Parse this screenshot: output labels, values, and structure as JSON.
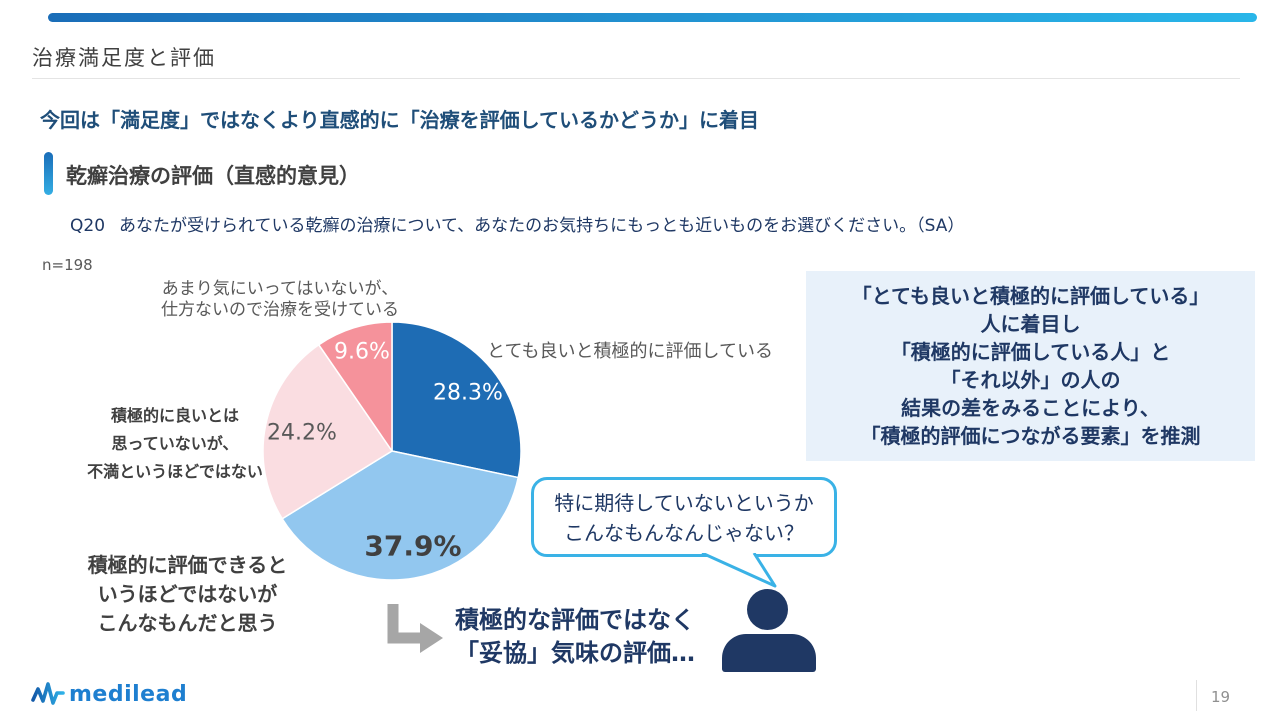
{
  "header": {
    "slide_title": "治療満足度と評価"
  },
  "headline": "今回は「満足度」ではなくより直感的に「治療を評価しているかどうか」に着目",
  "section": {
    "title": "乾癬治療の評価（直感的意見）",
    "question_no": "Q20",
    "question_text": "あなたが受けられている乾癬の治療について、あなたのお気持ちにもっとも近いものをお選びください。（SA）",
    "sample_size": "n=198"
  },
  "chart_data": {
    "type": "pie",
    "n": 198,
    "start_angle_deg": 0,
    "direction": "clockwise",
    "segments": [
      {
        "label": "とても良いと積極的に評価している",
        "value": 28.3,
        "value_label": "28.3%",
        "color": "#1e6cb4"
      },
      {
        "label": "積極的に評価できるというほどではないがこんなもんだと思う",
        "value": 37.9,
        "value_label": "37.9%",
        "color": "#92c7ef"
      },
      {
        "label": "積極的に良いとは思っていないが、不満というほどではない",
        "value": 24.2,
        "value_label": "24.2%",
        "color": "#fadde1"
      },
      {
        "label": "あまり気にいってはいないが、仕方ないので治療を受けている",
        "value": 9.6,
        "value_label": "9.6%",
        "color": "#f5929b"
      }
    ]
  },
  "pie_labels": {
    "top": [
      "あまり気にいってはいないが、",
      "仕方ないので治療を受けている"
    ],
    "right": "とても良いと積極的に評価している",
    "left": [
      "積極的に良いとは",
      "思っていないが、",
      "不満というほどではない"
    ],
    "bottom_left": [
      "積極的に評価できると",
      "いうほどではないが",
      "こんなもんだと思う"
    ]
  },
  "callout_box": {
    "lines": [
      "「とても良いと積極的に評価している」",
      "人に着目し",
      "「積極的に評価している人」と",
      "「それ以外」の人の",
      "結果の差をみることにより、",
      "「積極的評価につながる要素」を推測"
    ],
    "background": "#e8f1fa",
    "text_color": "#1f3864"
  },
  "speech_bubble": {
    "lines": [
      "特に期待していないというか",
      "こんなもんなんじゃない？"
    ],
    "border_color": "#3ab2e6"
  },
  "conclusion": {
    "lines": [
      "積極的な評価ではなく",
      "「妥協」気味の評価…"
    ]
  },
  "footer": {
    "logo_text": "medilead",
    "page_number": "19"
  },
  "colors": {
    "accent_bar_gradient_start": "#1a6db8",
    "accent_bar_gradient_end": "#29b6e9",
    "navy_text": "#1f3864",
    "headline_navy": "#1f4e79",
    "gray_text": "#595959",
    "dark_gray_text": "#404040"
  }
}
